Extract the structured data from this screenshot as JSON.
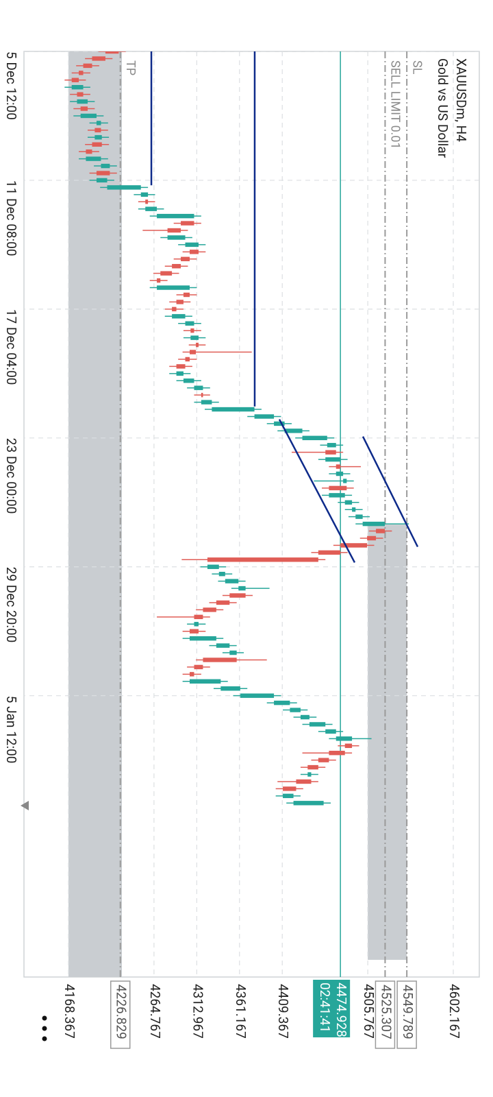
{
  "chart_data": {
    "type": "candlestick",
    "title": "XAUUSDm, H4",
    "subtitle": "Gold vs US Dollar",
    "categories": [
      "5 Dec 12:00",
      null,
      null,
      null,
      null,
      null,
      null,
      null,
      null,
      null,
      null,
      null,
      null,
      null,
      null,
      null,
      null,
      null,
      "11 Dec 08:00",
      null,
      null,
      null,
      null,
      null,
      null,
      null,
      null,
      null,
      null,
      null,
      null,
      null,
      null,
      null,
      null,
      null,
      "17 Dec 04:00",
      null,
      null,
      null,
      null,
      null,
      null,
      null,
      null,
      null,
      null,
      null,
      null,
      null,
      null,
      null,
      null,
      null,
      "23 Dec 00:00",
      null,
      null,
      null,
      null,
      null,
      null,
      null,
      null,
      null,
      null,
      null,
      null,
      null,
      null,
      null,
      null,
      null,
      "29 Dec 20:00",
      null,
      null,
      null,
      null,
      null,
      null,
      null,
      null,
      null,
      null,
      null,
      null,
      null,
      null,
      null,
      null,
      null,
      "5 Jan 12:00",
      null,
      null,
      null,
      null,
      null,
      null,
      null,
      null,
      null,
      null,
      null,
      null,
      null,
      null,
      null
    ],
    "open": [
      4225,
      4210,
      4195,
      4185,
      4180,
      4172,
      4185,
      4178,
      4190,
      4182,
      4200,
      4205,
      4198,
      4206,
      4195,
      4188,
      4205,
      4215,
      4200,
      4212,
      4250,
      4258,
      4255,
      4268,
      4310,
      4295,
      4280,
      4300,
      4315,
      4305,
      4295,
      4285,
      4272,
      4268,
      4305,
      4298,
      4290,
      4285,
      4300,
      4310,
      4306,
      4315,
      4312,
      4305,
      4300,
      4290,
      4298,
      4310,
      4320,
      4318,
      4330,
      4378,
      4400,
      4412,
      4432,
      4460,
      4470,
      4458,
      4475,
      4470,
      4478,
      4482,
      4462,
      4480,
      4488,
      4492,
      4500,
      4525,
      4515,
      4505,
      4475,
      4450,
      4325,
      4338,
      4345,
      4360,
      4368,
      4350,
      4335,
      4320,
      4310,
      4315,
      4305,
      4335,
      4350,
      4358,
      4320,
      4310,
      4305,
      4340,
      4362,
      4400,
      4418,
      4430,
      4440,
      4458,
      4470,
      4488,
      4480,
      4462,
      4450,
      4438,
      4442,
      4425,
      4410,
      4422
    ],
    "high": [
      4233,
      4218,
      4203,
      4193,
      4188,
      4193,
      4193,
      4198,
      4198,
      4208,
      4213,
      4213,
      4214,
      4214,
      4203,
      4213,
      4223,
      4223,
      4220,
      4258,
      4266,
      4266,
      4276,
      4318,
      4318,
      4303,
      4308,
      4323,
      4323,
      4313,
      4303,
      4293,
      4280,
      4313,
      4313,
      4306,
      4298,
      4308,
      4318,
      4318,
      4323,
      4323,
      4375,
      4313,
      4308,
      4306,
      4318,
      4328,
      4328,
      4338,
      4386,
      4408,
      4420,
      4440,
      4468,
      4478,
      4478,
      4483,
      4498,
      4486,
      4490,
      4490,
      4488,
      4496,
      4500,
      4508,
      4552,
      4533,
      4523,
      4513,
      4483,
      4458,
      4346,
      4353,
      4368,
      4395,
      4376,
      4358,
      4343,
      4328,
      4323,
      4323,
      4343,
      4358,
      4366,
      4392,
      4328,
      4318,
      4348,
      4370,
      4408,
      4426,
      4438,
      4448,
      4466,
      4478,
      4510,
      4496,
      4488,
      4470,
      4458,
      4450,
      4450,
      4433,
      4430,
      4464
    ],
    "low": [
      4202,
      4187,
      4177,
      4172,
      4164,
      4164,
      4170,
      4170,
      4174,
      4174,
      4192,
      4190,
      4190,
      4187,
      4180,
      4180,
      4197,
      4192,
      4192,
      4204,
      4242,
      4247,
      4247,
      4260,
      4287,
      4252,
      4272,
      4292,
      4297,
      4287,
      4277,
      4264,
      4260,
      4260,
      4290,
      4282,
      4277,
      4277,
      4292,
      4298,
      4298,
      4304,
      4297,
      4292,
      4282,
      4282,
      4290,
      4302,
      4310,
      4310,
      4322,
      4370,
      4392,
      4404,
      4424,
      4452,
      4420,
      4450,
      4462,
      4462,
      4445,
      4454,
      4454,
      4472,
      4480,
      4484,
      4492,
      4507,
      4497,
      4467,
      4442,
      4296,
      4317,
      4330,
      4337,
      4352,
      4342,
      4327,
      4312,
      4268,
      4302,
      4297,
      4297,
      4327,
      4342,
      4312,
      4302,
      4297,
      4297,
      4332,
      4354,
      4392,
      4410,
      4422,
      4432,
      4450,
      4462,
      4472,
      4432,
      4442,
      4430,
      4430,
      4404,
      4402,
      4402,
      4414
    ],
    "close": [
      4210,
      4195,
      4185,
      4180,
      4172,
      4185,
      4178,
      4190,
      4182,
      4200,
      4205,
      4198,
      4206,
      4195,
      4188,
      4205,
      4215,
      4200,
      4212,
      4250,
      4258,
      4255,
      4268,
      4310,
      4295,
      4280,
      4300,
      4315,
      4305,
      4295,
      4285,
      4272,
      4268,
      4305,
      4298,
      4290,
      4285,
      4300,
      4310,
      4306,
      4315,
      4312,
      4305,
      4300,
      4290,
      4298,
      4310,
      4320,
      4318,
      4330,
      4378,
      4400,
      4412,
      4432,
      4460,
      4470,
      4458,
      4475,
      4470,
      4478,
      4482,
      4462,
      4480,
      4488,
      4492,
      4500,
      4525,
      4515,
      4505,
      4475,
      4450,
      4325,
      4338,
      4345,
      4360,
      4368,
      4350,
      4335,
      4320,
      4310,
      4315,
      4305,
      4335,
      4350,
      4358,
      4320,
      4310,
      4305,
      4340,
      4362,
      4400,
      4418,
      4430,
      4440,
      4458,
      4470,
      4488,
      4480,
      4462,
      4450,
      4438,
      4442,
      4425,
      4410,
      4422,
      4456
    ],
    "up_color": "#26a69a",
    "down_color": "#e05d56",
    "xlim": [
      0,
      129.3
    ],
    "ylim": [
      4118.2,
      4631.5
    ],
    "yticks": [
      4168.367,
      4264.767,
      4312.967,
      4361.167,
      4409.367,
      4505.767,
      4602.167
    ],
    "grid": true,
    "bid": {
      "value": 4474.928,
      "countdown": "02:41:41",
      "color": "#26a69a"
    },
    "price_lines": [
      {
        "name": "SL",
        "value": 4549.789
      },
      {
        "name": "SELL LIMIT 0.01",
        "value": 4525.307
      },
      {
        "name": "TP",
        "value": 4226.829
      }
    ],
    "drawings": [
      {
        "start": [
          0,
          4261.8
        ],
        "end": [
          18.7,
          4261.8
        ]
      },
      {
        "start": [
          0,
          4378.3
        ],
        "end": [
          49.6,
          4378.3
        ]
      },
      {
        "start": [
          51.4,
          4406.1
        ],
        "end": [
          71.4,
          4491.0
        ]
      },
      {
        "start": [
          53.8,
          4500.3
        ],
        "end": [
          69.2,
          4562.0
        ]
      }
    ],
    "drawing_color": "#0d2a8a",
    "zones": [
      {
        "from": 0,
        "to": 129.3,
        "low": 4168.367,
        "high": 4228.6
      },
      {
        "from": 66.1,
        "to": 126.9,
        "low": 4505.767,
        "high": 4549.789
      }
    ],
    "zone_color": "#c9cdd1"
  }
}
